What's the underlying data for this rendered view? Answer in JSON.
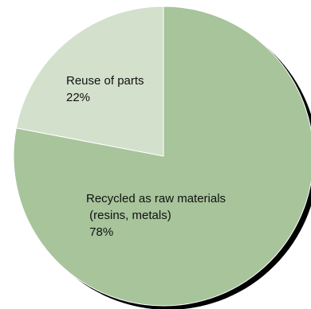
{
  "chart_data": {
    "type": "pie",
    "slices": [
      {
        "label_lines": [
          "Recycled as raw materials",
          " (resins, metals)"
        ],
        "value": 78,
        "value_label": " 78%",
        "color": "#a7c49b"
      },
      {
        "label_lines": [
          "Reuse of parts"
        ],
        "value": 22,
        "value_label": "22%",
        "color": "#d3e0cc"
      }
    ],
    "start_angle_deg": 0,
    "direction": "clockwise",
    "shadow": true,
    "shadow_color": "#000000",
    "stroke_color": "#ffffff"
  }
}
